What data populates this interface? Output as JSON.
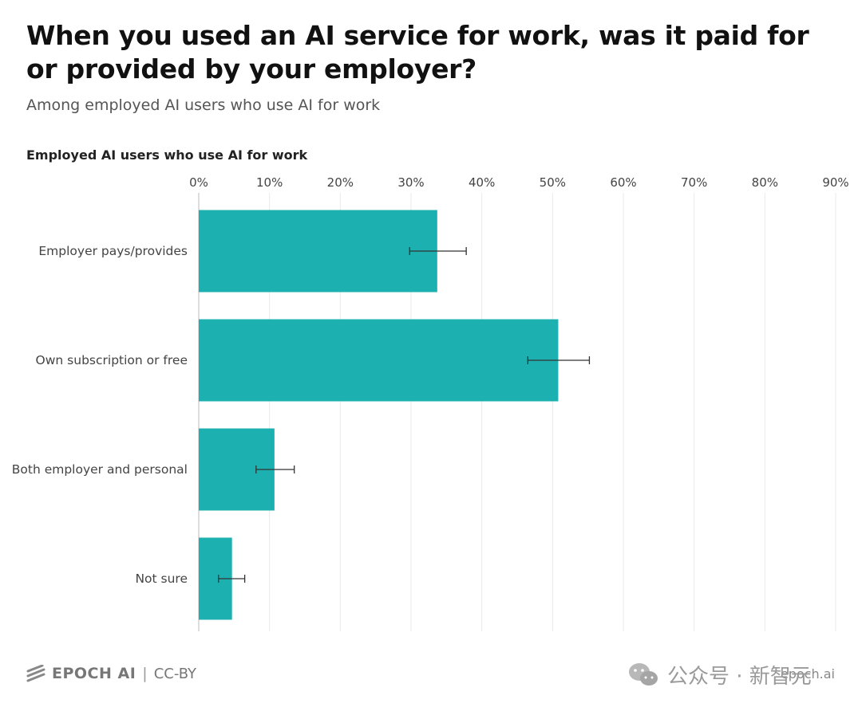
{
  "header": {
    "title": "When you used an AI service for work, was it paid for or provided by your employer?",
    "subtitle": "Among employed AI users who use AI for work"
  },
  "panel": {
    "title": "Employed AI users who use AI for work"
  },
  "chart_data": {
    "type": "bar",
    "orientation": "horizontal",
    "categories": [
      "Employer pays/provides",
      "Own subscription or free",
      "Both employer and personal",
      "Not sure"
    ],
    "values": [
      33.7,
      50.8,
      10.7,
      4.7
    ],
    "error_low": [
      29.8,
      46.5,
      8.1,
      2.8
    ],
    "error_high": [
      37.8,
      55.2,
      13.5,
      6.5
    ],
    "xlim": [
      0,
      90
    ],
    "xticks": [
      "0%",
      "10%",
      "20%",
      "30%",
      "40%",
      "50%",
      "60%",
      "70%",
      "80%",
      "90%"
    ],
    "grid": true,
    "bar_color": "#1cb0b0",
    "error_color": "#333333"
  },
  "footer": {
    "brand": "EPOCH AI",
    "separator": "|",
    "license": "CC-BY",
    "site": "epoch.ai"
  },
  "watermark": {
    "text": "公众号 · 新智元",
    "icon": "wechat-icon"
  }
}
